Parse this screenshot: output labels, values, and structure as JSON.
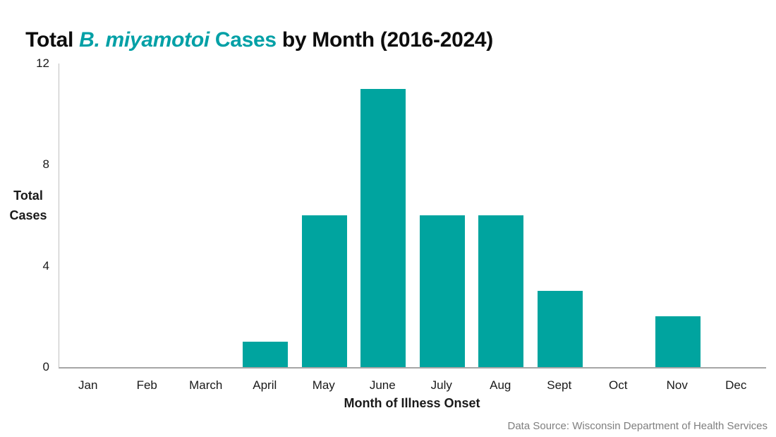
{
  "title": {
    "part1_black": "Total ",
    "part2_teal_italic": "B. miyamotoi",
    "part3_teal": " Cases",
    "part4_black": " by Month (2016-2024)"
  },
  "colors": {
    "accent_teal": "#00a0a6",
    "bar_teal": "#00a49f",
    "y_axis_line": "#bfbfbf",
    "x_axis_line": "#a6a6a6",
    "text": "#1a1a1a",
    "footer_text": "#7f7f7f"
  },
  "y_axis": {
    "label_line1": "Total",
    "label_line2": "Cases",
    "ticks": [
      12,
      8,
      4,
      0
    ],
    "max": 12
  },
  "x_axis": {
    "title": "Month of Illness Onset"
  },
  "footer": {
    "source_text": "Data Source: Wisconsin Department of Health Services"
  },
  "chart_data": {
    "type": "bar",
    "title": "Total B. miyamotoi Cases by Month (2016-2024)",
    "categories": [
      "Jan",
      "Feb",
      "March",
      "April",
      "May",
      "June",
      "July",
      "Aug",
      "Sept",
      "Oct",
      "Nov",
      "Dec"
    ],
    "values": [
      0,
      0,
      0,
      1,
      6,
      11,
      6,
      6,
      3,
      0,
      2,
      0
    ],
    "xlabel": "Month of Illness Onset",
    "ylabel": "Total Cases",
    "ylim": [
      0,
      12
    ],
    "yticks": [
      0,
      4,
      8,
      12
    ],
    "bar_color": "#00a49f",
    "grid": false,
    "legend": false
  }
}
